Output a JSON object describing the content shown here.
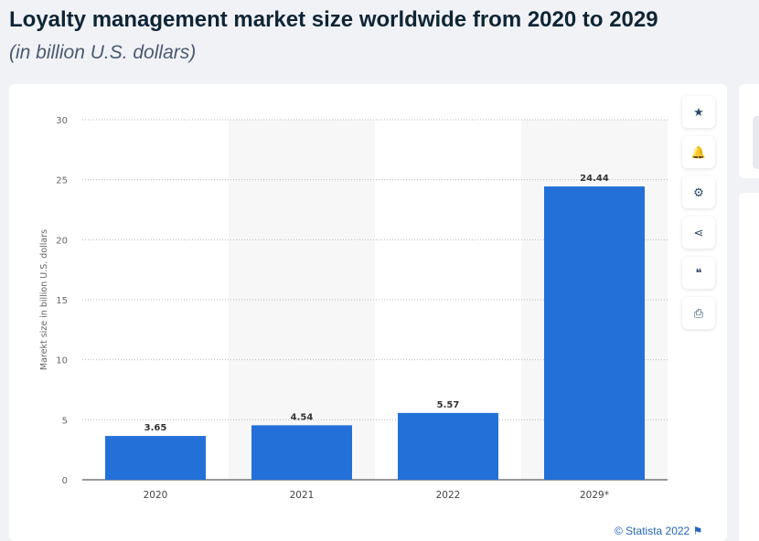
{
  "title": "Loyalty management market size worldwide from 2020 to 2029",
  "subtitle": "(in billion U.S. dollars)",
  "credit": "© Statista 2022",
  "toolbar": [
    {
      "icon": "star-icon",
      "glyph": "★"
    },
    {
      "icon": "bell-icon",
      "glyph": "🔔"
    },
    {
      "icon": "gear-icon",
      "glyph": "⚙"
    },
    {
      "icon": "share-icon",
      "glyph": "⋖"
    },
    {
      "icon": "quote-icon",
      "glyph": "❝"
    },
    {
      "icon": "print-icon",
      "glyph": "⎙"
    }
  ],
  "chart_data": {
    "type": "bar",
    "categories": [
      "2020",
      "2021",
      "2022",
      "2029*"
    ],
    "values": [
      3.65,
      4.54,
      5.57,
      24.44
    ],
    "labels": [
      "3.65",
      "4.54",
      "5.57",
      "24.44"
    ],
    "ylabel": "Marekt size in billion U.S. dollars",
    "ylim": [
      0,
      30
    ],
    "yticks": [
      0,
      5,
      10,
      15,
      20,
      25,
      30
    ],
    "grid": true,
    "bar_color": "#2470d9"
  }
}
